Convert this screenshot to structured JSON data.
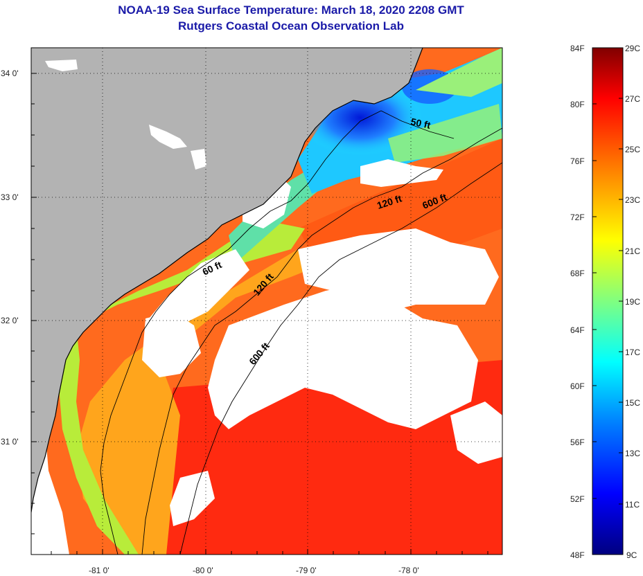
{
  "title": {
    "line1": "NOAA-19 Sea Surface Temperature:  March 18, 2020 2208 GMT",
    "line2": "Rutgers Coastal Ocean Observation Lab"
  },
  "map": {
    "lat_range": [
      30.2,
      34.2
    ],
    "lon_range": [
      -81.7,
      -77.2
    ],
    "lat_ticks": [
      {
        "value": 34,
        "label": "34 0'"
      },
      {
        "value": 33,
        "label": "33 0'"
      },
      {
        "value": 32,
        "label": "32 0'"
      },
      {
        "value": 31,
        "label": "31 0'"
      }
    ],
    "lon_ticks": [
      {
        "value": -81,
        "label": "-81 0'"
      },
      {
        "value": -80,
        "label": "-80 0'"
      },
      {
        "value": -79,
        "label": "-79 0'"
      },
      {
        "value": -78,
        "label": "-78 0'"
      }
    ],
    "grid": "dotted",
    "colors": {
      "land": "#b3b3b3",
      "cloud": "#ffffff",
      "coast": "#000000"
    },
    "contours": [
      {
        "label": "50 ft"
      },
      {
        "label": "60 ft"
      },
      {
        "label": "120 ft"
      },
      {
        "label": "120 ft"
      },
      {
        "label": "600 ft"
      },
      {
        "label": "600 ft"
      }
    ]
  },
  "colorbar": {
    "fahrenheit_labels": [
      "84F",
      "80F",
      "76F",
      "72F",
      "68F",
      "64F",
      "60F",
      "56F",
      "52F",
      "48F"
    ],
    "celsius_labels": [
      "29C",
      "27C",
      "25C",
      "23C",
      "21C",
      "19C",
      "17C",
      "15C",
      "13C",
      "11C",
      "9C"
    ],
    "range_f": [
      48,
      84
    ],
    "range_c": [
      9,
      29
    ],
    "colors": [
      "#000080",
      "#0000ff",
      "#0080ff",
      "#00ffff",
      "#80ff80",
      "#ffff00",
      "#ff8000",
      "#ff0000",
      "#800000"
    ]
  }
}
